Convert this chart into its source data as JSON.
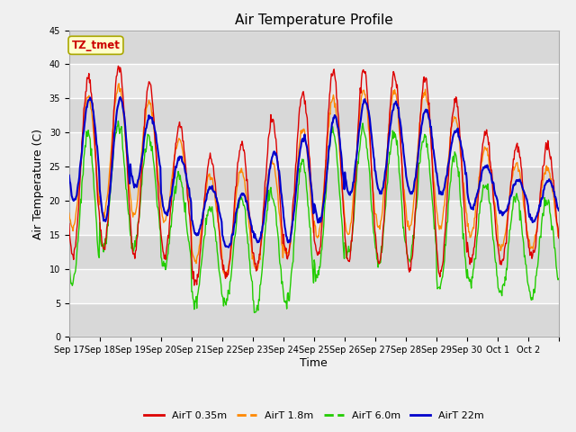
{
  "title": "Air Temperature Profile",
  "xlabel": "Time",
  "ylabel": "Air Temperature (C)",
  "ylim": [
    0,
    45
  ],
  "annotation_text": "TZ_tmet",
  "annotation_color": "#cc0000",
  "annotation_bg": "#ffffcc",
  "annotation_border": "#aaa800",
  "fig_bg": "#f0f0f0",
  "plot_bg": "#e8e8e8",
  "colors": {
    "AirT 0.35m": "#dd0000",
    "AirT 1.8m": "#ff8800",
    "AirT 6.0m": "#22cc00",
    "AirT 22m": "#0000cc"
  },
  "legend_labels": [
    "AirT 0.35m",
    "AirT 1.8m",
    "AirT 6.0m",
    "AirT 22m"
  ],
  "x_tick_labels": [
    "Sep 17",
    "Sep 18",
    "Sep 19",
    "Sep 20",
    "Sep 21",
    "Sep 22",
    "Sep 23",
    "Sep 24",
    "Sep 25",
    "Sep 26",
    "Sep 27",
    "Sep 28",
    "Sep 29",
    "Sep 30",
    "Oct 1",
    "Oct 2"
  ],
  "peaks_035": [
    37,
    39,
    40,
    35.5,
    28.5,
    25,
    30,
    33,
    37.5,
    40,
    39,
    38.5,
    38,
    33,
    28,
    28
  ],
  "troughs_035": [
    12,
    13,
    12,
    12,
    8,
    9,
    10,
    12,
    12,
    11,
    11,
    10,
    9,
    11,
    11,
    12
  ],
  "peaks_18": [
    34,
    36,
    37,
    33,
    26,
    22,
    26,
    26,
    33,
    36,
    36,
    36,
    36,
    30,
    26,
    25
  ],
  "troughs_18": [
    16,
    18,
    18,
    17,
    11,
    9,
    10,
    12,
    15,
    15,
    16,
    16,
    16,
    15,
    13,
    13
  ],
  "peaks_60": [
    29,
    30,
    32,
    28,
    21,
    18,
    22,
    21,
    29,
    31,
    30,
    30,
    29,
    25,
    21,
    20
  ],
  "troughs_60": [
    8,
    13,
    13,
    10,
    5,
    5,
    4,
    5,
    9,
    12,
    11,
    11,
    7,
    8,
    6,
    6
  ],
  "peaks_22m": [
    35,
    35,
    35,
    31,
    24,
    21,
    21,
    30,
    29,
    34,
    35,
    34,
    33,
    29,
    23,
    23
  ],
  "troughs_22m": [
    20,
    17,
    22,
    18,
    15,
    13,
    14,
    14,
    17,
    21,
    21,
    21,
    21,
    19,
    18,
    17
  ],
  "n_days": 16,
  "n_per_day": 48
}
